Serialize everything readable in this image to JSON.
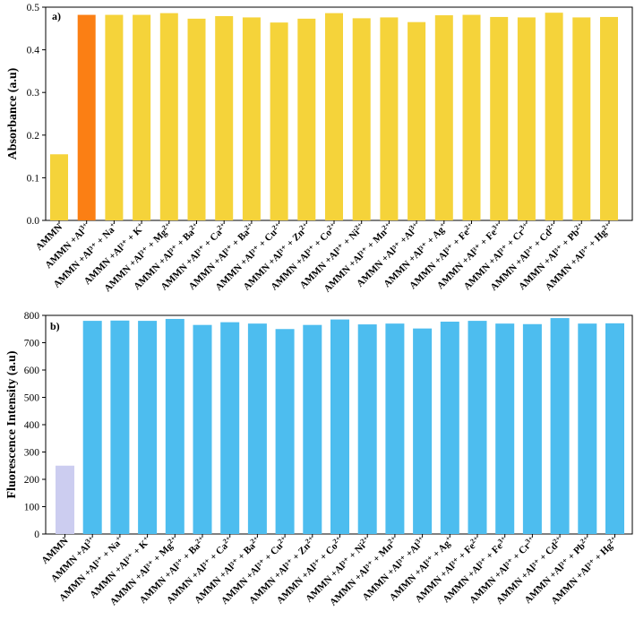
{
  "chart_data": [
    {
      "type": "bar",
      "panel_label": "a)",
      "title": "",
      "xlabel": "",
      "ylabel": "Absorbance (a.u)",
      "ylim": [
        0,
        0.5
      ],
      "yticks": [
        "0.0",
        "0.1",
        "0.2",
        "0.3",
        "0.4",
        "0.5"
      ],
      "categories": [
        {
          "base": "AMMN",
          "sup": ""
        },
        {
          "base": "AMMN +Al",
          "sup": "3+"
        },
        {
          "base": "AMMN +Al³⁺ + Na",
          "sup": "+"
        },
        {
          "base": "AMMN +Al³⁺ + K",
          "sup": "+"
        },
        {
          "base": "AMMN +Al³⁺ + Mg",
          "sup": "2+"
        },
        {
          "base": "AMMN +Al³⁺ + Ba",
          "sup": "2+"
        },
        {
          "base": "AMMN +Al³⁺ + Ca",
          "sup": "2+"
        },
        {
          "base": "AMMN +Al³⁺ + Ba",
          "sup": "2+"
        },
        {
          "base": "AMMN +Al³⁺ + Cu",
          "sup": "2+"
        },
        {
          "base": "AMMN +Al³⁺ + Zn",
          "sup": "2+"
        },
        {
          "base": "AMMN +Al³⁺ + Co",
          "sup": "2+"
        },
        {
          "base": "AMMN +Al³⁺ + Ni",
          "sup": "2+"
        },
        {
          "base": "AMMN +Al³⁺ + Mn",
          "sup": "2+"
        },
        {
          "base": "AMMN +Al³⁺ +Al",
          "sup": "3+"
        },
        {
          "base": "AMMN +Al³⁺ + Ag",
          "sup": "+"
        },
        {
          "base": "AMMN +Al³⁺ + Fe",
          "sup": "2+"
        },
        {
          "base": "AMMN +Al³⁺ + Fe",
          "sup": "3+"
        },
        {
          "base": "AMMN +Al³⁺ + Cr",
          "sup": "3+"
        },
        {
          "base": "AMMN +Al³⁺ + Cd",
          "sup": "2+"
        },
        {
          "base": "AMMN +Al³⁺ + Pb",
          "sup": "2+"
        },
        {
          "base": "AMMN +Al³⁺ + Hg",
          "sup": "2+"
        }
      ],
      "values": [
        0.155,
        0.482,
        0.482,
        0.482,
        0.486,
        0.473,
        0.479,
        0.476,
        0.464,
        0.473,
        0.486,
        0.474,
        0.476,
        0.465,
        0.481,
        0.482,
        0.477,
        0.476,
        0.487,
        0.476,
        0.477
      ],
      "bar_colors": [
        "#f5d33a",
        "#fb7f14",
        "#f5d33a",
        "#f5d33a",
        "#f5d33a",
        "#f5d33a",
        "#f5d33a",
        "#f5d33a",
        "#f5d33a",
        "#f5d33a",
        "#f5d33a",
        "#f5d33a",
        "#f5d33a",
        "#f5d33a",
        "#f5d33a",
        "#f5d33a",
        "#f5d33a",
        "#f5d33a",
        "#f5d33a",
        "#f5d33a",
        "#f5d33a"
      ],
      "grid": false
    },
    {
      "type": "bar",
      "panel_label": "b)",
      "title": "",
      "xlabel": "",
      "ylabel": "Fluorescence Intensity (a.u)",
      "ylim": [
        0,
        800
      ],
      "yticks": [
        "0",
        "100",
        "200",
        "300",
        "400",
        "500",
        "600",
        "700",
        "800"
      ],
      "categories": [
        {
          "base": "AMMN",
          "sup": ""
        },
        {
          "base": "AMMN +Al",
          "sup": "3+"
        },
        {
          "base": "AMMN +Al³⁺ + Na",
          "sup": "+"
        },
        {
          "base": "AMMN +Al³⁺ + K",
          "sup": "+"
        },
        {
          "base": "AMMN +Al³⁺ + Mg",
          "sup": "2+"
        },
        {
          "base": "AMMN +Al³⁺ + Ba",
          "sup": "2+"
        },
        {
          "base": "AMMN +Al³⁺ + Ca",
          "sup": "2+"
        },
        {
          "base": "AMMN +Al³⁺ + Ba",
          "sup": "2+"
        },
        {
          "base": "AMMN +Al³⁺ + Cu",
          "sup": "2+"
        },
        {
          "base": "AMMN +Al³⁺ + Zn",
          "sup": "2+"
        },
        {
          "base": "AMMN +Al³⁺ + Co",
          "sup": "2+"
        },
        {
          "base": "AMMN +Al³⁺ + Ni",
          "sup": "2+"
        },
        {
          "base": "AMMN +Al³⁺ + Mn",
          "sup": "2+"
        },
        {
          "base": "AMMN +Al³⁺ +Al",
          "sup": "3+"
        },
        {
          "base": "AMMN +Al³⁺ + Ag",
          "sup": "+"
        },
        {
          "base": "AMMN +Al³⁺ + Fe",
          "sup": "2+"
        },
        {
          "base": "AMMN +Al³⁺ + Fe",
          "sup": "3+"
        },
        {
          "base": "AMMN +Al³⁺ + Cr",
          "sup": "3+"
        },
        {
          "base": "AMMN +Al³⁺ + Cd",
          "sup": "2+"
        },
        {
          "base": "AMMN +Al³⁺ + Pb",
          "sup": "2+"
        },
        {
          "base": "AMMN +Al³⁺ + Hg",
          "sup": "2+"
        }
      ],
      "values": [
        250,
        780,
        781,
        780,
        787,
        765,
        775,
        770,
        750,
        765,
        785,
        767,
        770,
        752,
        777,
        780,
        770,
        768,
        790,
        770,
        771
      ],
      "bar_colors": [
        "#cccdf0",
        "#4dbdef",
        "#4dbdef",
        "#4dbdef",
        "#4dbdef",
        "#4dbdef",
        "#4dbdef",
        "#4dbdef",
        "#4dbdef",
        "#4dbdef",
        "#4dbdef",
        "#4dbdef",
        "#4dbdef",
        "#4dbdef",
        "#4dbdef",
        "#4dbdef",
        "#4dbdef",
        "#4dbdef",
        "#4dbdef",
        "#4dbdef",
        "#4dbdef"
      ],
      "grid": false
    }
  ]
}
